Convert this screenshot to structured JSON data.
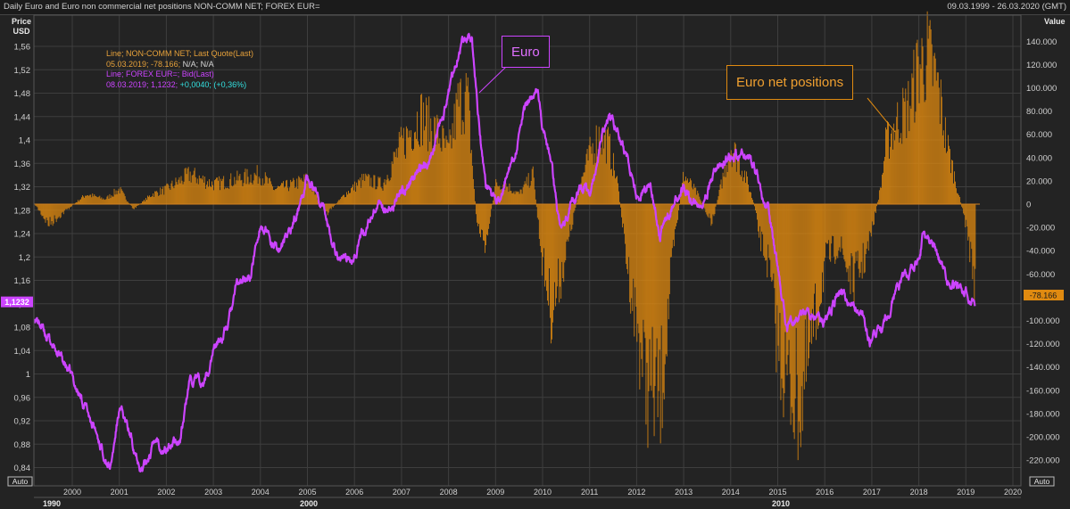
{
  "header": {
    "title": "Daily Euro and Euro non commercial net positions NON-COMM NET; FOREX EUR=",
    "date_range": "09.03.1999 - 26.03.2020 (GMT)"
  },
  "left_axis": {
    "title_line1": "Price",
    "title_line2": "USD",
    "auto": "Auto"
  },
  "right_axis": {
    "title": "Value",
    "auto": "Auto"
  },
  "legend": {
    "line1": "Line; NON-COMM NET; Last Quote(Last)",
    "line2_a": "05.03.2019; -78.166;",
    "line2_b": " N/A; N/A",
    "line3": "Line; FOREX EUR=; Bid(Last)",
    "line4_a": "08.03.2019; 1,1232;",
    "line4_b": " +0,0040; (+0,36%)"
  },
  "annotations": {
    "euro": "Euro",
    "net": "Euro net positions"
  },
  "last_value_tags": {
    "price": "1,1232",
    "net": "-78.166"
  },
  "colors": {
    "background": "#232323",
    "grid": "#3e3e3e",
    "euro": "#cc44ff",
    "net": "#e08a10",
    "legend_orange": "#e6a13a",
    "legend_cyan": "#33e0e0",
    "legend_white": "#d8d8d8"
  },
  "chart_data": {
    "type": "line+bar",
    "title": "Daily Euro and Euro non commercial net positions NON-COMM NET; FOREX EUR=",
    "x_ticks": [
      "2000",
      "2001",
      "2002",
      "2003",
      "2004",
      "2005",
      "2006",
      "2007",
      "2008",
      "2009",
      "2010",
      "2011",
      "2012",
      "2013",
      "2014",
      "2015",
      "2016",
      "2017",
      "2018",
      "2019",
      "2020"
    ],
    "x_bottom_labels": [
      "1990",
      "2000",
      "2010"
    ],
    "left_ticks": [
      "1,56",
      "1,52",
      "1,48",
      "1,44",
      "1,4",
      "1,36",
      "1,32",
      "1,28",
      "1,24",
      "1,2",
      "1,16",
      "1,12",
      "1,08",
      "1,04",
      "1",
      "0,96",
      "0,92",
      "0,88",
      "0,84"
    ],
    "left_tick_values": [
      1.56,
      1.52,
      1.48,
      1.44,
      1.4,
      1.36,
      1.32,
      1.28,
      1.24,
      1.2,
      1.16,
      1.12,
      1.08,
      1.04,
      1.0,
      0.96,
      0.92,
      0.88,
      0.84
    ],
    "right_ticks": [
      "140.000",
      "120.000",
      "100.000",
      "80.000",
      "60.000",
      "40.000",
      "20.000",
      "0",
      "-20.000",
      "-40.000",
      "-60.000",
      "-80.000",
      "-100.000",
      "-120.000",
      "-140.000",
      "-160.000",
      "-180.000",
      "-200.000",
      "-220.000"
    ],
    "right_tick_values": [
      140000,
      120000,
      100000,
      80000,
      60000,
      40000,
      20000,
      0,
      -20000,
      -40000,
      -60000,
      -80000,
      -100000,
      -120000,
      -140000,
      -160000,
      -180000,
      -200000,
      -220000
    ],
    "series": [
      {
        "name": "FOREX EUR=",
        "axis": "left",
        "x": [
          1999.2,
          1999.5,
          1999.8,
          2000.0,
          2000.3,
          2000.6,
          2000.82,
          2001.0,
          2001.2,
          2001.4,
          2001.5,
          2001.8,
          2002.0,
          2002.3,
          2002.5,
          2002.8,
          2003.0,
          2003.3,
          2003.5,
          2003.8,
          2004.0,
          2004.3,
          2004.5,
          2004.8,
          2005.0,
          2005.2,
          2005.4,
          2005.6,
          2005.8,
          2006.0,
          2006.3,
          2006.5,
          2006.8,
          2007.0,
          2007.3,
          2007.6,
          2007.9,
          2008.0,
          2008.2,
          2008.3,
          2008.5,
          2008.6,
          2008.8,
          2009.0,
          2009.2,
          2009.4,
          2009.6,
          2009.9,
          2010.0,
          2010.2,
          2010.4,
          2010.6,
          2010.9,
          2011.0,
          2011.3,
          2011.5,
          2011.8,
          2012.0,
          2012.3,
          2012.5,
          2012.8,
          2013.0,
          2013.3,
          2013.6,
          2013.9,
          2014.0,
          2014.3,
          2014.5,
          2014.8,
          2015.0,
          2015.2,
          2015.5,
          2015.8,
          2016.0,
          2016.3,
          2016.6,
          2016.8,
          2016.95,
          2017.2,
          2017.5,
          2017.8,
          2018.0,
          2018.1,
          2018.4,
          2018.6,
          2018.8,
          2019.0,
          2019.2
        ],
        "y": [
          1.1,
          1.06,
          1.02,
          0.99,
          0.94,
          0.88,
          0.84,
          0.94,
          0.9,
          0.86,
          0.84,
          0.89,
          0.87,
          0.89,
          0.99,
          0.98,
          1.04,
          1.08,
          1.15,
          1.17,
          1.26,
          1.21,
          1.22,
          1.28,
          1.34,
          1.31,
          1.27,
          1.21,
          1.19,
          1.21,
          1.26,
          1.28,
          1.29,
          1.31,
          1.34,
          1.37,
          1.45,
          1.48,
          1.55,
          1.57,
          1.58,
          1.47,
          1.31,
          1.28,
          1.33,
          1.37,
          1.44,
          1.5,
          1.43,
          1.34,
          1.23,
          1.29,
          1.32,
          1.31,
          1.42,
          1.44,
          1.37,
          1.31,
          1.32,
          1.24,
          1.3,
          1.32,
          1.29,
          1.33,
          1.36,
          1.37,
          1.38,
          1.35,
          1.28,
          1.18,
          1.08,
          1.1,
          1.1,
          1.09,
          1.14,
          1.11,
          1.11,
          1.05,
          1.07,
          1.14,
          1.17,
          1.19,
          1.24,
          1.21,
          1.16,
          1.15,
          1.14,
          1.1232
        ]
      },
      {
        "name": "NON-COMM NET",
        "axis": "right",
        "x": [
          1999.2,
          1999.5,
          1999.9,
          2000.3,
          2000.7,
          2001.0,
          2001.3,
          2001.7,
          2002.0,
          2002.5,
          2003.0,
          2003.5,
          2004.0,
          2004.3,
          2004.7,
          2005.0,
          2005.4,
          2005.8,
          2006.2,
          2006.6,
          2007.0,
          2007.4,
          2007.8,
          2008.0,
          2008.2,
          2008.4,
          2008.6,
          2008.8,
          2009.0,
          2009.2,
          2009.5,
          2009.8,
          2010.0,
          2010.2,
          2010.5,
          2010.8,
          2011.0,
          2011.2,
          2011.4,
          2011.6,
          2011.8,
          2012.0,
          2012.2,
          2012.5,
          2012.8,
          2013.0,
          2013.3,
          2013.6,
          2013.9,
          2014.0,
          2014.3,
          2014.5,
          2014.6,
          2014.8,
          2015.0,
          2015.2,
          2015.5,
          2015.8,
          2016.0,
          2016.3,
          2016.6,
          2016.9,
          2017.2,
          2017.3,
          2017.5,
          2017.8,
          2018.0,
          2018.2,
          2018.4,
          2018.6,
          2018.8,
          2019.0,
          2019.2
        ],
        "y": [
          0,
          -20000,
          -5000,
          10000,
          5000,
          15000,
          -5000,
          10000,
          15000,
          30000,
          20000,
          25000,
          30000,
          15000,
          20000,
          25000,
          -10000,
          10000,
          25000,
          20000,
          60000,
          90000,
          70000,
          50000,
          100000,
          110000,
          -20000,
          -40000,
          20000,
          20000,
          10000,
          30000,
          -60000,
          -110000,
          -50000,
          20000,
          50000,
          70000,
          60000,
          20000,
          -60000,
          -120000,
          -180000,
          -200000,
          -40000,
          30000,
          10000,
          -20000,
          40000,
          60000,
          30000,
          0,
          -30000,
          -60000,
          -140000,
          -180000,
          -200000,
          -120000,
          -60000,
          -40000,
          -80000,
          -50000,
          20000,
          60000,
          80000,
          100000,
          140000,
          150000,
          120000,
          60000,
          20000,
          -20000,
          -78166
        ]
      }
    ],
    "annotations": [
      "Euro",
      "Euro net positions"
    ]
  }
}
